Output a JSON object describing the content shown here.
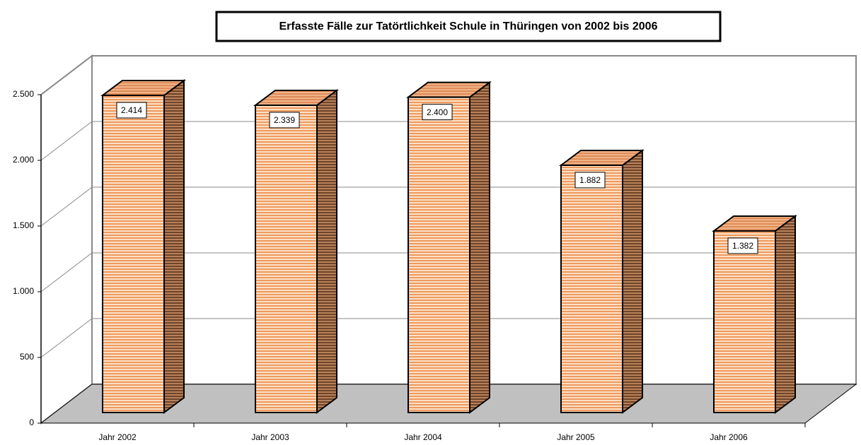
{
  "chart_data": {
    "type": "bar3d",
    "title": "Erfasste Fälle zur Tatörtlichkeit Schule in Thüringen von 2002 bis 2006",
    "categories": [
      "Jahr 2002",
      "Jahr 2003",
      "Jahr 2004",
      "Jahr 2005",
      "Jahr 2006"
    ],
    "values": [
      2414,
      2339,
      2400,
      1882,
      1382
    ],
    "value_labels": [
      "2.414",
      "2.339",
      "2.400",
      "1.882",
      "1.382"
    ],
    "ylim": [
      0,
      2500
    ],
    "yticks": [
      0,
      500,
      {
        "value": 1000,
        "label": "1.000"
      },
      {
        "value": 1500,
        "label": "1.500"
      },
      {
        "value": 2000,
        "label": "2.000"
      },
      {
        "value": 2500,
        "label": "2.500"
      }
    ],
    "grid": true,
    "color": "#f4a460"
  }
}
